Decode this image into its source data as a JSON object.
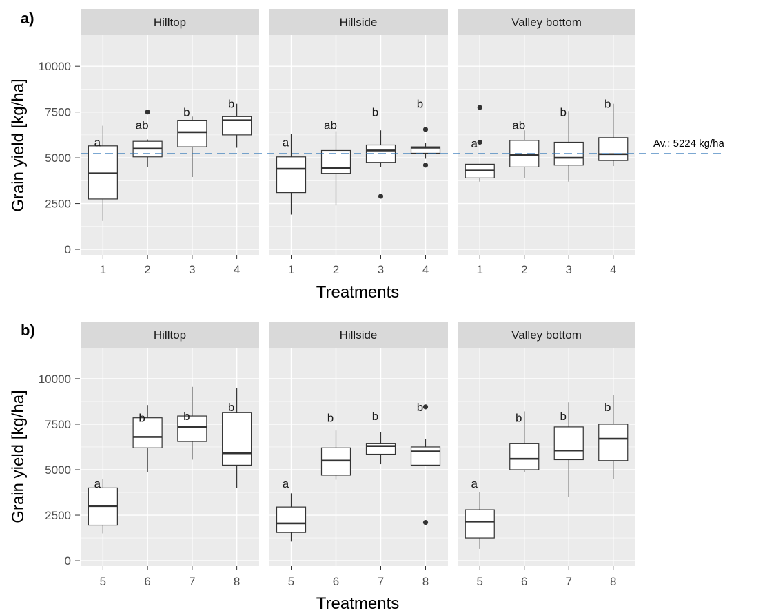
{
  "figure": {
    "ref_line_label": "Av.: 5224 kg/ha",
    "ref_line_value": 5224,
    "colors": {
      "panel_bg": "#ebebeb",
      "strip_bg": "#d9d9d9",
      "grid_major": "#ffffff",
      "box_stroke": "#333333",
      "ref_line": "#2e75b6",
      "text": "#1a1a1a",
      "tick_text": "#4d4d4d"
    }
  },
  "chart_data": [
    {
      "type": "box",
      "panel_label": "a)",
      "xlabel": "Treatments",
      "ylabel": "Grain yield [kg/ha]",
      "ylim": [
        -300,
        11700
      ],
      "yticks": [
        0,
        2500,
        5000,
        7500,
        10000
      ],
      "ytick_labels": [
        "0",
        "2500",
        "5000",
        "7500",
        "10000"
      ],
      "categories": [
        "1",
        "2",
        "3",
        "4"
      ],
      "grid": true,
      "facets": [
        {
          "name": "Hilltop",
          "boxes": [
            {
              "x": "1",
              "low": 1550,
              "q1": 2750,
              "median": 4150,
              "q3": 5650,
              "high": 6750,
              "outliers": [],
              "letter": "a",
              "letter_y": 5850
            },
            {
              "x": "2",
              "low": 4500,
              "q1": 5050,
              "median": 5500,
              "q3": 5900,
              "high": 6000,
              "outliers": [
                7500
              ],
              "letter": "ab",
              "letter_y": 6800
            },
            {
              "x": "3",
              "low": 3950,
              "q1": 5600,
              "median": 6400,
              "q3": 7050,
              "high": 7250,
              "outliers": [],
              "letter": "b",
              "letter_y": 7500
            },
            {
              "x": "4",
              "low": 5550,
              "q1": 6250,
              "median": 7050,
              "q3": 7250,
              "high": 7950,
              "outliers": [],
              "letter": "b",
              "letter_y": 7950
            }
          ]
        },
        {
          "name": "Hillside",
          "boxes": [
            {
              "x": "1",
              "low": 1900,
              "q1": 3100,
              "median": 4400,
              "q3": 5050,
              "high": 6300,
              "outliers": [],
              "letter": "a",
              "letter_y": 5850
            },
            {
              "x": "2",
              "low": 2400,
              "q1": 4150,
              "median": 4450,
              "q3": 5400,
              "high": 6450,
              "outliers": [],
              "letter": "ab",
              "letter_y": 6800
            },
            {
              "x": "3",
              "low": 4500,
              "q1": 4750,
              "median": 5400,
              "q3": 5700,
              "high": 6500,
              "outliers": [
                2900
              ],
              "letter": "b",
              "letter_y": 7500
            },
            {
              "x": "4",
              "low": 4950,
              "q1": 5250,
              "median": 5550,
              "q3": 5600,
              "high": 5800,
              "outliers": [
                6550,
                4600
              ],
              "letter": "b",
              "letter_y": 7950
            }
          ]
        },
        {
          "name": "Valley bottom",
          "boxes": [
            {
              "x": "1",
              "low": 3700,
              "q1": 3900,
              "median": 4300,
              "q3": 4650,
              "high": 4650,
              "outliers": [
                7750,
                5850
              ],
              "letter": "a",
              "letter_y": 5800
            },
            {
              "x": "2",
              "low": 3900,
              "q1": 4500,
              "median": 5150,
              "q3": 5950,
              "high": 6500,
              "outliers": [],
              "letter": "ab",
              "letter_y": 6800
            },
            {
              "x": "3",
              "low": 3700,
              "q1": 4600,
              "median": 5000,
              "q3": 5850,
              "high": 7550,
              "outliers": [],
              "letter": "b",
              "letter_y": 7500
            },
            {
              "x": "4",
              "low": 4550,
              "q1": 4850,
              "median": 5200,
              "q3": 6100,
              "high": 7950,
              "outliers": [],
              "letter": "b",
              "letter_y": 7950
            }
          ]
        }
      ]
    },
    {
      "type": "box",
      "panel_label": "b)",
      "xlabel": "Treatments",
      "ylabel": "Grain yield [kg/ha]",
      "ylim": [
        -300,
        11700
      ],
      "yticks": [
        0,
        2500,
        5000,
        7500,
        10000
      ],
      "ytick_labels": [
        "0",
        "2500",
        "5000",
        "7500",
        "10000"
      ],
      "categories": [
        "5",
        "6",
        "7",
        "8"
      ],
      "grid": true,
      "facets": [
        {
          "name": "Hilltop",
          "boxes": [
            {
              "x": "5",
              "low": 1500,
              "q1": 1950,
              "median": 3000,
              "q3": 4000,
              "high": 4500,
              "outliers": [],
              "letter": "a",
              "letter_y": 4250
            },
            {
              "x": "6",
              "low": 4850,
              "q1": 6200,
              "median": 6800,
              "q3": 7850,
              "high": 8550,
              "outliers": [],
              "letter": "b",
              "letter_y": 7850
            },
            {
              "x": "7",
              "low": 5550,
              "q1": 6550,
              "median": 7350,
              "q3": 7950,
              "high": 9550,
              "outliers": [],
              "letter": "b",
              "letter_y": 7950
            },
            {
              "x": "8",
              "low": 4000,
              "q1": 5250,
              "median": 5900,
              "q3": 8150,
              "high": 9500,
              "outliers": [],
              "letter": "b",
              "letter_y": 8450
            }
          ]
        },
        {
          "name": "Hillside",
          "boxes": [
            {
              "x": "5",
              "low": 1050,
              "q1": 1550,
              "median": 2050,
              "q3": 2950,
              "high": 3700,
              "outliers": [],
              "letter": "a",
              "letter_y": 4250
            },
            {
              "x": "6",
              "low": 4450,
              "q1": 4700,
              "median": 5500,
              "q3": 6200,
              "high": 7150,
              "outliers": [],
              "letter": "b",
              "letter_y": 7850
            },
            {
              "x": "7",
              "low": 5300,
              "q1": 5850,
              "median": 6300,
              "q3": 6450,
              "high": 7050,
              "outliers": [],
              "letter": "b",
              "letter_y": 7950
            },
            {
              "x": "8",
              "low": 5250,
              "q1": 5250,
              "median": 6000,
              "q3": 6250,
              "high": 6700,
              "outliers": [
                8450,
                2100
              ],
              "letter": "b",
              "letter_y": 8450
            }
          ]
        },
        {
          "name": "Valley bottom",
          "boxes": [
            {
              "x": "5",
              "low": 650,
              "q1": 1250,
              "median": 2150,
              "q3": 2800,
              "high": 3750,
              "outliers": [],
              "letter": "a",
              "letter_y": 4250
            },
            {
              "x": "6",
              "low": 4850,
              "q1": 5000,
              "median": 5600,
              "q3": 6450,
              "high": 8200,
              "outliers": [],
              "letter": "b",
              "letter_y": 7850
            },
            {
              "x": "7",
              "low": 3500,
              "q1": 5550,
              "median": 6050,
              "q3": 7350,
              "high": 8700,
              "outliers": [],
              "letter": "b",
              "letter_y": 7950
            },
            {
              "x": "8",
              "low": 4500,
              "q1": 5500,
              "median": 6700,
              "q3": 7500,
              "high": 9100,
              "outliers": [],
              "letter": "b",
              "letter_y": 8450
            }
          ]
        }
      ]
    }
  ]
}
